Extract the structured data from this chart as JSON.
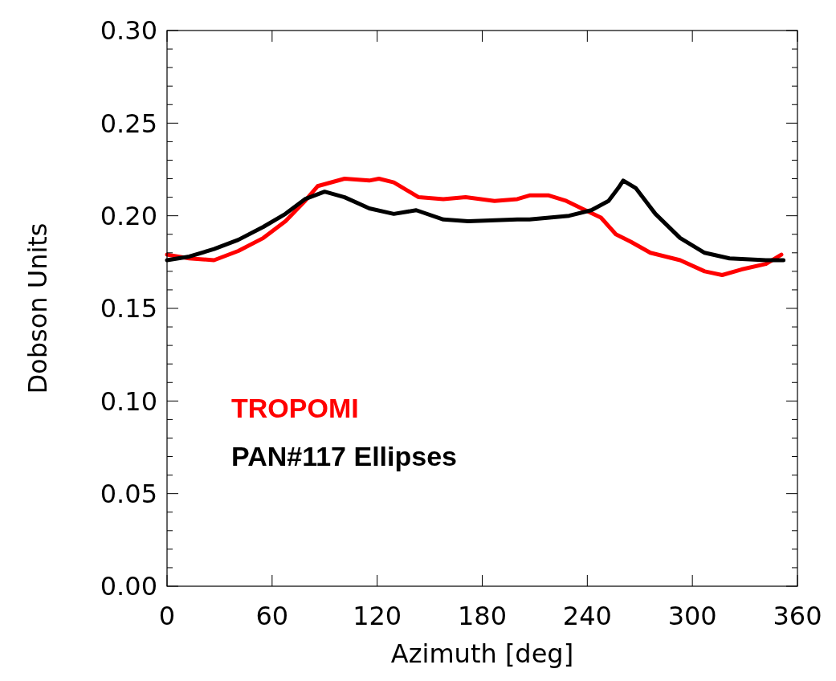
{
  "chart_data": {
    "type": "line",
    "xlabel": "Azimuth [deg]",
    "ylabel": "Dobson Units",
    "xlim": [
      0,
      360
    ],
    "xticks": [
      0,
      60,
      120,
      180,
      240,
      300,
      360
    ],
    "ylim": [
      0,
      0.3
    ],
    "yticks": [
      {
        "value": 0,
        "label": "0.00"
      },
      {
        "value": 0.01,
        "label": null
      },
      {
        "value": 0.02,
        "label": null
      },
      {
        "value": 0.03,
        "label": null
      },
      {
        "value": 0.04,
        "label": null
      },
      {
        "value": 0.05,
        "label": "0.05"
      },
      {
        "value": 0.06,
        "label": null
      },
      {
        "value": 0.07,
        "label": null
      },
      {
        "value": 0.08,
        "label": null
      },
      {
        "value": 0.09,
        "label": null
      },
      {
        "value": 0.1,
        "label": "0.10"
      },
      {
        "value": 0.11,
        "label": null
      },
      {
        "value": 0.12,
        "label": null
      },
      {
        "value": 0.13,
        "label": null
      },
      {
        "value": 0.14,
        "label": null
      },
      {
        "value": 0.15,
        "label": "0.15"
      },
      {
        "value": 0.16,
        "label": null
      },
      {
        "value": 0.17,
        "label": null
      },
      {
        "value": 0.18,
        "label": null
      },
      {
        "value": 0.19,
        "label": null
      },
      {
        "value": 0.2,
        "label": "0.20"
      },
      {
        "value": 0.21,
        "label": null
      },
      {
        "value": 0.22,
        "label": null
      },
      {
        "value": 0.23,
        "label": null
      },
      {
        "value": 0.24,
        "label": null
      },
      {
        "value": 0.25,
        "label": "0.25"
      },
      {
        "value": 0.26,
        "label": null
      },
      {
        "value": 0.27,
        "label": null
      },
      {
        "value": 0.28,
        "label": null
      },
      {
        "value": 0.29,
        "label": null
      },
      {
        "value": 0.3,
        "label": "0.30"
      }
    ],
    "grid": false,
    "legend": "bottom left",
    "marker": "none",
    "line_style": "solid",
    "series": [
      {
        "name": "TROPOMI",
        "color": "#ff0000",
        "x": [
          0,
          12.7,
          26.8,
          40.7,
          55,
          67.6,
          78.8,
          86,
          101.4,
          115.5,
          121,
          129.5,
          143.7,
          157.8,
          170.5,
          187,
          200,
          207,
          218,
          228,
          236.7,
          247.8,
          256.3,
          264.8,
          276,
          293,
          307,
          317,
          328,
          342,
          350.8
        ],
        "values": [
          0.179,
          0.177,
          0.176,
          0.181,
          0.188,
          0.197,
          0.208,
          0.216,
          0.22,
          0.219,
          0.22,
          0.218,
          0.21,
          0.209,
          0.21,
          0.208,
          0.209,
          0.211,
          0.211,
          0.208,
          0.204,
          0.199,
          0.19,
          0.186,
          0.18,
          0.176,
          0.17,
          0.168,
          0.171,
          0.174,
          0.179
        ]
      },
      {
        "name": "PAN#117 Ellipses",
        "color": "#000000",
        "x": [
          0,
          12.7,
          26.8,
          40.7,
          55,
          67.6,
          78.8,
          90,
          101.4,
          115.5,
          129.5,
          142.3,
          157.8,
          172,
          200,
          207,
          229.6,
          242.3,
          252.1,
          257.7,
          260.5,
          267.6,
          278.9,
          293,
          307,
          321.2,
          342,
          352
        ],
        "values": [
          0.176,
          0.178,
          0.182,
          0.187,
          0.194,
          0.201,
          0.209,
          0.213,
          0.21,
          0.204,
          0.201,
          0.203,
          0.198,
          0.197,
          0.198,
          0.198,
          0.2,
          0.203,
          0.208,
          0.215,
          0.219,
          0.215,
          0.201,
          0.188,
          0.18,
          0.177,
          0.176,
          0.176
        ]
      }
    ]
  }
}
